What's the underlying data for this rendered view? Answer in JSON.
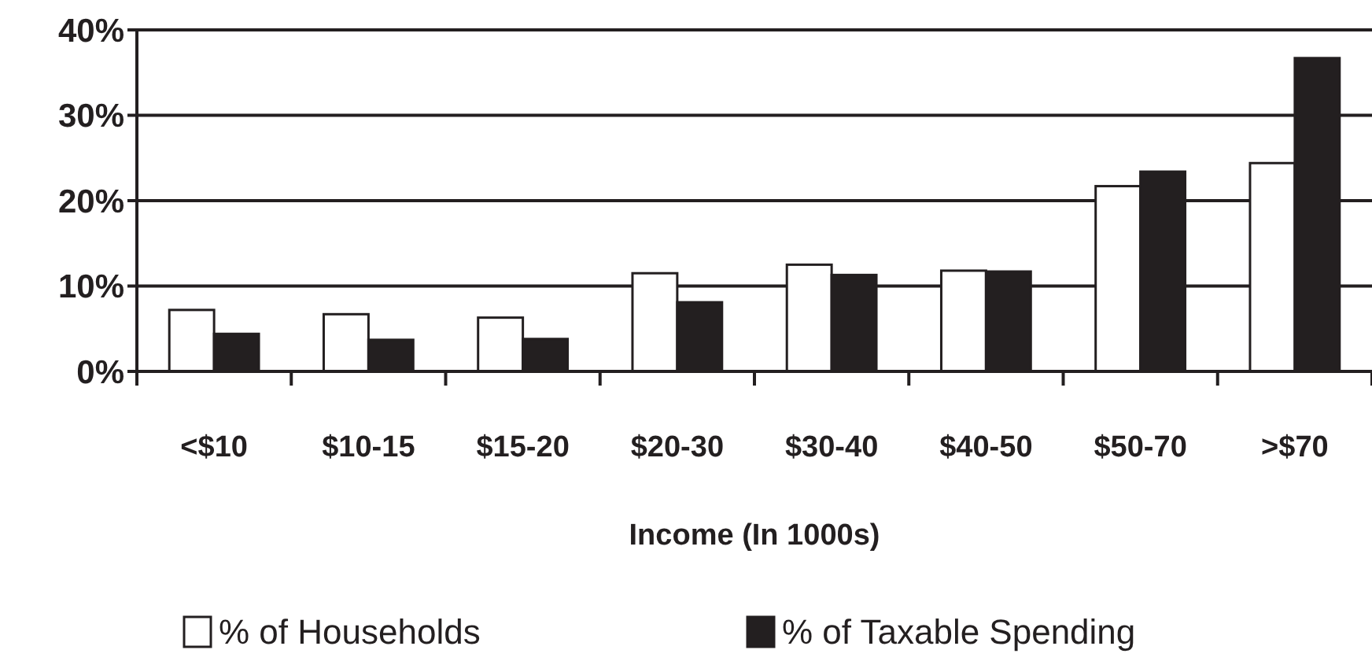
{
  "chart_data": {
    "type": "bar",
    "categories": [
      "<$10",
      "$10-15",
      "$15-20",
      "$20-30",
      "$30-40",
      "$40-50",
      "$50-70",
      ">$70"
    ],
    "xlabel": "Income (In 1000s)",
    "series": [
      {
        "name": "% of Households",
        "color": "#ffffff",
        "values": [
          7.2,
          6.7,
          6.3,
          11.5,
          12.5,
          11.8,
          21.7,
          24.4
        ]
      },
      {
        "name": "% of Taxable Spending",
        "color": "#231f20",
        "values": [
          4.4,
          3.7,
          3.8,
          8.1,
          11.3,
          11.7,
          23.4,
          36.7
        ]
      }
    ],
    "ylim": [
      0,
      40
    ],
    "yticks": [
      {
        "value": 0,
        "label": "0%"
      },
      {
        "value": 10,
        "label": "10%"
      },
      {
        "value": 20,
        "label": "20%"
      },
      {
        "value": 30,
        "label": "30%"
      },
      {
        "value": 40,
        "label": "40%"
      }
    ],
    "grid": "y",
    "legend": "bottom"
  }
}
